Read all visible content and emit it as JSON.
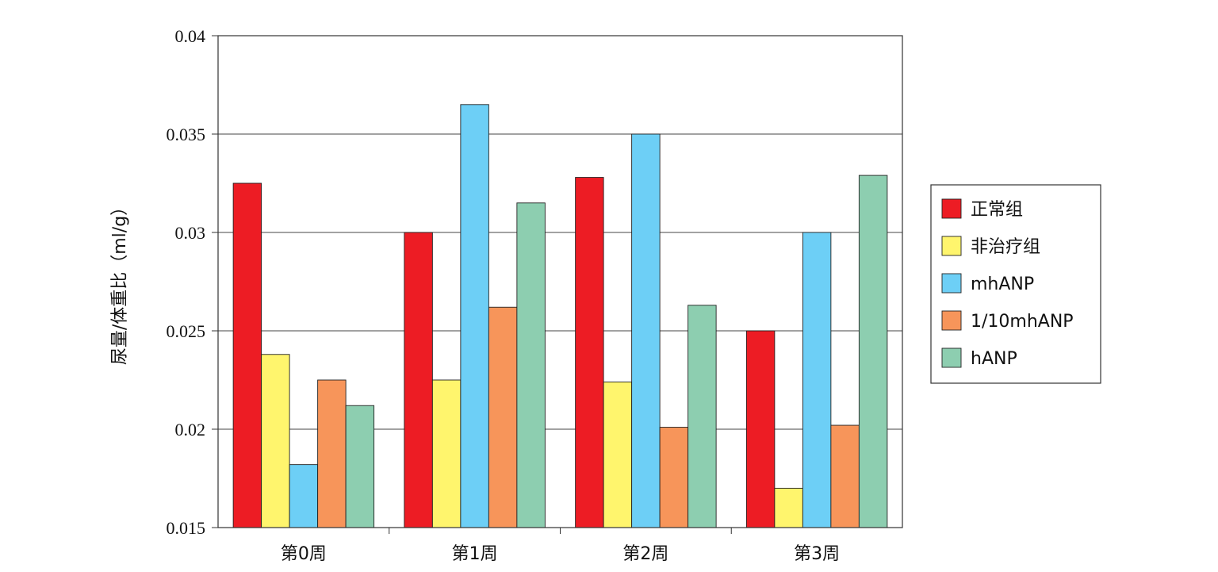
{
  "chart_data": {
    "type": "bar",
    "title": "",
    "xlabel": "",
    "ylabel": "尿量/体重比（ml/g）",
    "categories": [
      "第0周",
      "第1周",
      "第2周",
      "第3周"
    ],
    "series": [
      {
        "name": "正常组",
        "color": "#ED1C24",
        "values": [
          0.0325,
          0.03,
          0.0328,
          0.025
        ]
      },
      {
        "name": "非治疗组",
        "color": "#FFF56D",
        "values": [
          0.0238,
          0.0225,
          0.0224,
          0.017
        ]
      },
      {
        "name": "mhANP",
        "color": "#6DCFF6",
        "values": [
          0.0182,
          0.0365,
          0.035,
          0.03
        ]
      },
      {
        "name": "1/10mhANP",
        "color": "#F7955A",
        "values": [
          0.0225,
          0.0262,
          0.0201,
          0.0202
        ]
      },
      {
        "name": "hANP",
        "color": "#8DCEB0",
        "values": [
          0.0212,
          0.0315,
          0.0263,
          0.0329
        ]
      }
    ],
    "ylim": [
      0.015,
      0.04
    ],
    "yticks": [
      "0.015",
      "0.02",
      "0.025",
      "0.03",
      "0.035",
      "0.04"
    ],
    "grid": true,
    "legend_position": "right"
  }
}
